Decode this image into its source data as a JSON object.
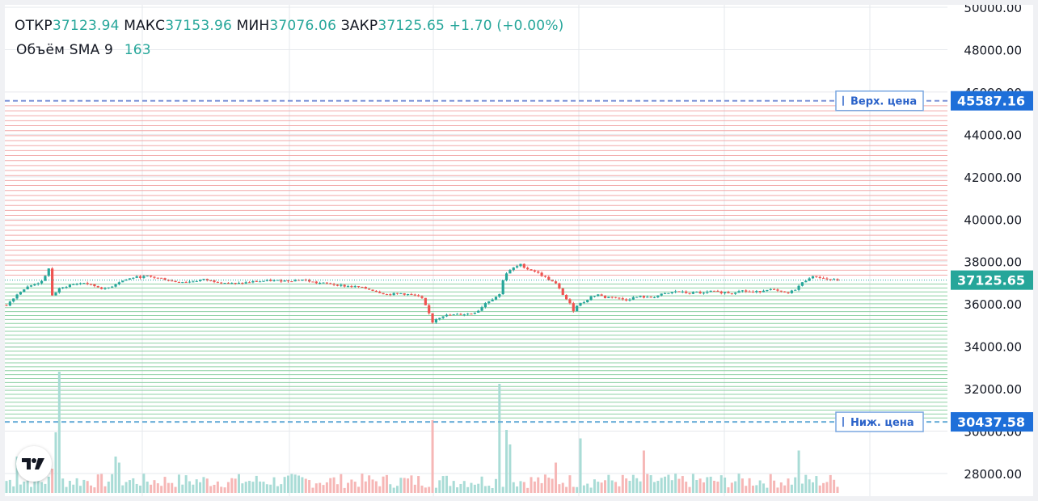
{
  "legend": {
    "open_label": "ОТКР",
    "open_value": "37123.94",
    "high_label": "МАКС",
    "high_value": "37153.96",
    "low_label": "МИН",
    "low_value": "37076.06",
    "close_label": "ЗАКР",
    "close_value": "37125.65",
    "change": "+1.70 (+0.00%)",
    "volume_label": "Объём SMA 9",
    "volume_value": "163"
  },
  "price_axis": {
    "ticks": [
      "50000.00",
      "48000.00",
      "46000.00",
      "44000.00",
      "42000.00",
      "40000.00",
      "38000.00",
      "36000.00",
      "34000.00",
      "32000.00",
      "30000.00",
      "28000.00"
    ]
  },
  "markers": {
    "upper": {
      "label": "Верх. цена",
      "value": "45587.16",
      "price": 45587.16
    },
    "lower": {
      "label": "Ниж. цена",
      "value": "30437.58",
      "price": 30437.58
    },
    "last": {
      "value": "37125.65",
      "price": 37125.65
    }
  },
  "colors": {
    "up": "#26a69a",
    "down": "#ef5350",
    "marker_blue": "#2962ff",
    "grid_upper": "#f2a9a9",
    "grid_lower": "#8ed1a4",
    "axis_text": "#131722"
  },
  "chart_data": {
    "type": "candlestick",
    "title": "",
    "ylim": [
      27000,
      50300
    ],
    "y_ticks": [
      28000,
      30000,
      32000,
      34000,
      36000,
      38000,
      40000,
      42000,
      44000,
      46000,
      48000,
      50000
    ],
    "grid": true,
    "grid_levels": {
      "count_above": 35,
      "count_below": 35,
      "from": 30437.58,
      "to": 45587.16,
      "split": 37125.65
    },
    "price_path": [
      [
        0,
        35950
      ],
      [
        2,
        36300
      ],
      [
        4,
        36600
      ],
      [
        6,
        36800
      ],
      [
        8,
        36950
      ],
      [
        10,
        37050
      ],
      [
        11,
        37300
      ],
      [
        12,
        37700
      ],
      [
        13,
        36400
      ],
      [
        15,
        36700
      ],
      [
        18,
        36900
      ],
      [
        22,
        37000
      ],
      [
        25,
        36850
      ],
      [
        28,
        36700
      ],
      [
        30,
        36850
      ],
      [
        32,
        37050
      ],
      [
        34,
        37150
      ],
      [
        36,
        37250
      ],
      [
        40,
        37300
      ],
      [
        44,
        37200
      ],
      [
        48,
        37050
      ],
      [
        52,
        37050
      ],
      [
        56,
        37150
      ],
      [
        60,
        37050
      ],
      [
        65,
        36950
      ],
      [
        70,
        37050
      ],
      [
        75,
        37100
      ],
      [
        80,
        37100
      ],
      [
        84,
        37150
      ],
      [
        88,
        37000
      ],
      [
        92,
        36950
      ],
      [
        96,
        36850
      ],
      [
        100,
        36800
      ],
      [
        104,
        36650
      ],
      [
        108,
        36450
      ],
      [
        112,
        36500
      ],
      [
        116,
        36400
      ],
      [
        118,
        36250
      ],
      [
        120,
        35550
      ],
      [
        121,
        35150
      ],
      [
        122,
        35300
      ],
      [
        124,
        35450
      ],
      [
        128,
        35500
      ],
      [
        132,
        35550
      ],
      [
        134,
        35700
      ],
      [
        136,
        36050
      ],
      [
        138,
        36250
      ],
      [
        140,
        36450
      ],
      [
        141,
        37150
      ],
      [
        142,
        37450
      ],
      [
        144,
        37700
      ],
      [
        146,
        37850
      ],
      [
        148,
        37650
      ],
      [
        150,
        37550
      ],
      [
        152,
        37350
      ],
      [
        154,
        37150
      ],
      [
        156,
        36950
      ],
      [
        158,
        36450
      ],
      [
        160,
        36000
      ],
      [
        161,
        35700
      ],
      [
        162,
        35950
      ],
      [
        164,
        36100
      ],
      [
        166,
        36350
      ],
      [
        168,
        36450
      ],
      [
        170,
        36300
      ],
      [
        172,
        36350
      ],
      [
        174,
        36250
      ],
      [
        176,
        36200
      ],
      [
        178,
        36300
      ],
      [
        180,
        36350
      ],
      [
        182,
        36300
      ],
      [
        184,
        36350
      ],
      [
        186,
        36450
      ],
      [
        188,
        36500
      ],
      [
        190,
        36600
      ],
      [
        192,
        36550
      ],
      [
        194,
        36500
      ],
      [
        196,
        36550
      ],
      [
        198,
        36500
      ],
      [
        200,
        36600
      ],
      [
        202,
        36550
      ],
      [
        204,
        36550
      ],
      [
        206,
        36500
      ],
      [
        208,
        36650
      ],
      [
        210,
        36600
      ],
      [
        212,
        36550
      ],
      [
        214,
        36600
      ],
      [
        216,
        36700
      ],
      [
        218,
        36650
      ],
      [
        220,
        36550
      ],
      [
        222,
        36500
      ],
      [
        224,
        36700
      ],
      [
        226,
        37000
      ],
      [
        228,
        37250
      ],
      [
        230,
        37300
      ],
      [
        232,
        37200
      ],
      [
        234,
        37150
      ],
      [
        236,
        37126
      ]
    ],
    "volume": {
      "ylim": [
        0,
        100
      ],
      "spikes": [
        [
          3,
          30
        ],
        [
          13,
          20
        ],
        [
          14,
          50
        ],
        [
          15,
          100
        ],
        [
          31,
          30
        ],
        [
          32,
          25
        ],
        [
          121,
          60
        ],
        [
          140,
          90
        ],
        [
          142,
          52
        ],
        [
          143,
          40
        ],
        [
          156,
          25
        ],
        [
          163,
          45
        ],
        [
          181,
          35
        ],
        [
          225,
          35
        ]
      ]
    }
  }
}
